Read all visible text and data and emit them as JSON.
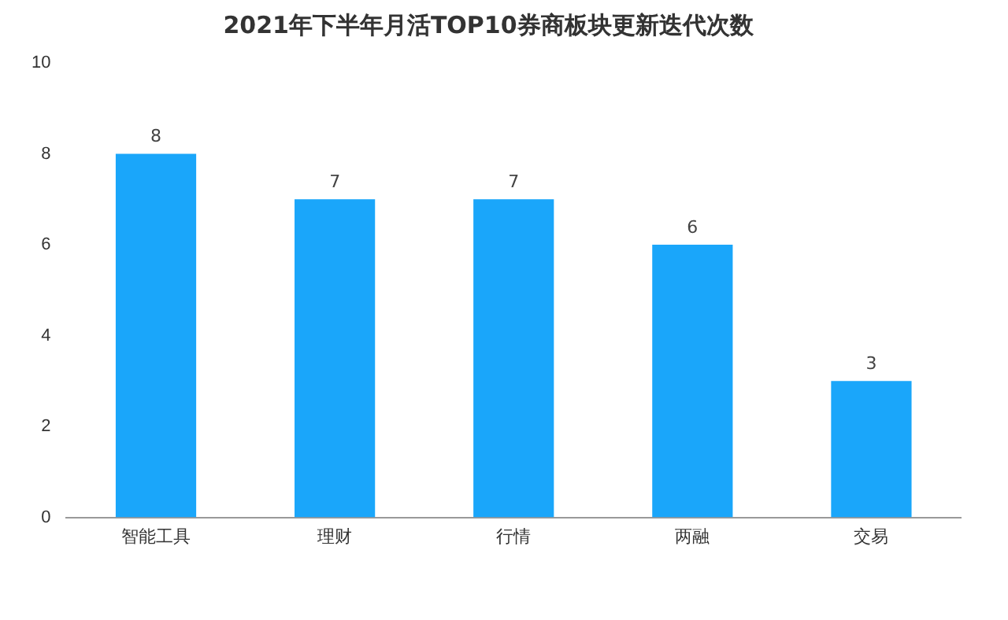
{
  "chart_data": {
    "type": "bar",
    "title": "2021年下半年月活TOP10券商板块更新迭代次数",
    "categories": [
      "智能工具",
      "理财",
      "行情",
      "两融",
      "交易"
    ],
    "values": [
      8,
      7,
      7,
      6,
      3
    ],
    "color": "#1aa6fa",
    "ylim": [
      0,
      10
    ],
    "yticks": [
      0,
      2,
      4,
      6,
      8,
      10
    ],
    "grid": false,
    "data_labels": true
  }
}
